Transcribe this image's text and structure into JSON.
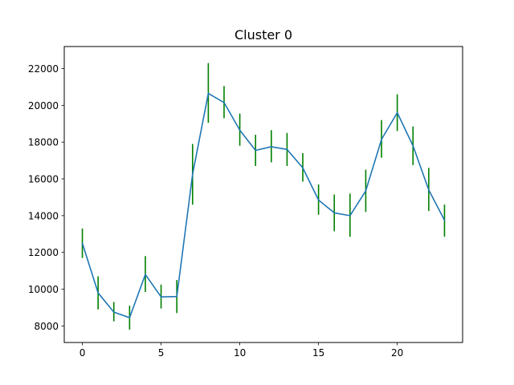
{
  "chart_data": {
    "type": "line",
    "title": "Cluster 0",
    "xlabel": "",
    "ylabel": "",
    "xlim": [
      -1.15,
      24.15
    ],
    "ylim": [
      7100,
      23200
    ],
    "x_ticks": [
      0,
      5,
      10,
      15,
      20
    ],
    "y_ticks": [
      8000,
      10000,
      12000,
      14000,
      16000,
      18000,
      20000,
      22000
    ],
    "x_tick_labels": [
      "0",
      "5",
      "10",
      "15",
      "20"
    ],
    "y_tick_labels": [
      "8000",
      "10000",
      "12000",
      "14000",
      "16000",
      "18000",
      "20000",
      "22000"
    ],
    "grid": false,
    "legend": "none",
    "series": [
      {
        "x": [
          0,
          1,
          2,
          3,
          4,
          5,
          6,
          7,
          8,
          9,
          10,
          11,
          12,
          13,
          14,
          15,
          16,
          17,
          18,
          19,
          20,
          21,
          22,
          23
        ],
        "values": [
          12500,
          9800,
          8750,
          8450,
          10800,
          9580,
          9600,
          16250,
          20650,
          20150,
          18650,
          17550,
          17750,
          17600,
          16600,
          14850,
          14150,
          14000,
          15350,
          18150,
          19600,
          17800,
          15400,
          13750
        ],
        "error_low": [
          11700,
          8900,
          8250,
          7800,
          9850,
          8950,
          8700,
          14600,
          19050,
          19300,
          17800,
          16700,
          16900,
          16700,
          15850,
          14050,
          13150,
          12850,
          14200,
          17150,
          18600,
          16750,
          14250,
          12850
        ],
        "error_high": [
          13300,
          10700,
          9300,
          9100,
          11800,
          10250,
          10500,
          17900,
          22300,
          21050,
          19550,
          18400,
          18650,
          18500,
          17400,
          15700,
          15150,
          15200,
          16500,
          19200,
          20600,
          18850,
          16600,
          14600
        ]
      }
    ],
    "colors": {
      "line": "#1f77b4",
      "errorbar": "#008000"
    }
  }
}
